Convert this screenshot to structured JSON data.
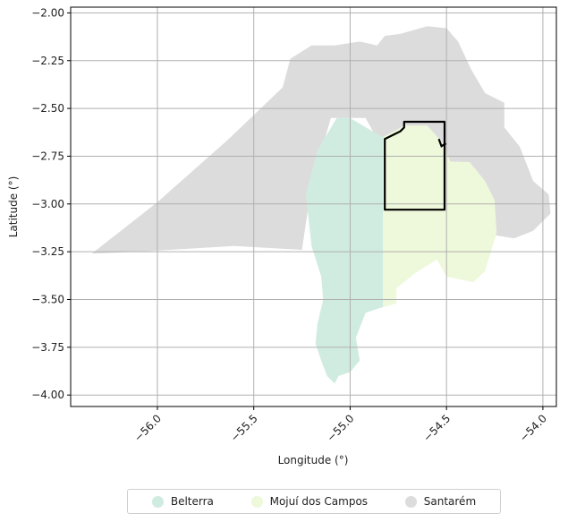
{
  "chart_data": {
    "type": "map",
    "xlabel": "Longitude (°)",
    "ylabel": "Latitude (°)",
    "xlim": [
      -56.45,
      -53.93
    ],
    "ylim": [
      -4.06,
      -1.97
    ],
    "x_ticks": [
      {
        "value": -56.0,
        "label": "−56.0"
      },
      {
        "value": -55.5,
        "label": "−55.5"
      },
      {
        "value": -55.0,
        "label": "−55.0"
      },
      {
        "value": -54.5,
        "label": "−54.5"
      },
      {
        "value": -54.0,
        "label": "−54.0"
      }
    ],
    "y_ticks": [
      {
        "value": -2.0,
        "label": "−2.00"
      },
      {
        "value": -2.25,
        "label": "−2.25"
      },
      {
        "value": -2.5,
        "label": "−2.50"
      },
      {
        "value": -2.75,
        "label": "−2.75"
      },
      {
        "value": -3.0,
        "label": "−3.00"
      },
      {
        "value": -3.25,
        "label": "−3.25"
      },
      {
        "value": -3.5,
        "label": "−3.50"
      },
      {
        "value": -3.75,
        "label": "−3.75"
      },
      {
        "value": -4.0,
        "label": "−4.00"
      }
    ],
    "grid": true,
    "legend_position": "bottom-center",
    "regions": [
      {
        "name": "Santarém",
        "color": "#dcdcdc",
        "polygon": [
          [
            -56.34,
            -3.26
          ],
          [
            -56.0,
            -2.99
          ],
          [
            -55.63,
            -2.66
          ],
          [
            -55.35,
            -2.39
          ],
          [
            -55.31,
            -2.24
          ],
          [
            -55.2,
            -2.17
          ],
          [
            -55.08,
            -2.17
          ],
          [
            -54.95,
            -2.15
          ],
          [
            -54.86,
            -2.17
          ],
          [
            -54.82,
            -2.12
          ],
          [
            -54.74,
            -2.11
          ],
          [
            -54.6,
            -2.07
          ],
          [
            -54.5,
            -2.08
          ],
          [
            -54.44,
            -2.15
          ],
          [
            -54.37,
            -2.3
          ],
          [
            -54.3,
            -2.42
          ],
          [
            -54.2,
            -2.47
          ],
          [
            -54.2,
            -2.6
          ],
          [
            -54.12,
            -2.7
          ],
          [
            -54.05,
            -2.88
          ],
          [
            -53.97,
            -2.95
          ],
          [
            -53.96,
            -3.05
          ],
          [
            -54.05,
            -3.14
          ],
          [
            -54.15,
            -3.18
          ],
          [
            -54.27,
            -3.16
          ],
          [
            -54.36,
            -2.85
          ],
          [
            -54.42,
            -2.78
          ],
          [
            -54.8,
            -2.77
          ],
          [
            -54.92,
            -2.55
          ],
          [
            -55.1,
            -2.55
          ],
          [
            -55.2,
            -2.9
          ],
          [
            -55.25,
            -3.24
          ],
          [
            -55.6,
            -3.22
          ],
          [
            -56.1,
            -3.25
          ]
        ]
      },
      {
        "name": "Mojuí dos Campos",
        "color": "#eef8da",
        "polygon": [
          [
            -54.83,
            -2.65
          ],
          [
            -54.72,
            -2.59
          ],
          [
            -54.6,
            -2.59
          ],
          [
            -54.52,
            -2.68
          ],
          [
            -54.48,
            -2.78
          ],
          [
            -54.38,
            -2.78
          ],
          [
            -54.3,
            -2.88
          ],
          [
            -54.25,
            -2.98
          ],
          [
            -54.24,
            -3.15
          ],
          [
            -54.3,
            -3.35
          ],
          [
            -54.36,
            -3.41
          ],
          [
            -54.5,
            -3.38
          ],
          [
            -54.55,
            -3.29
          ],
          [
            -54.66,
            -3.36
          ],
          [
            -54.76,
            -3.44
          ],
          [
            -54.76,
            -3.52
          ],
          [
            -54.83,
            -3.54
          ]
        ]
      },
      {
        "name": "Belterra",
        "color": "#d0ece0",
        "polygon": [
          [
            -55.07,
            -2.55
          ],
          [
            -55.0,
            -2.55
          ],
          [
            -54.9,
            -2.61
          ],
          [
            -54.83,
            -2.65
          ],
          [
            -54.83,
            -3.54
          ],
          [
            -54.92,
            -3.57
          ],
          [
            -54.97,
            -3.7
          ],
          [
            -54.95,
            -3.82
          ],
          [
            -55.0,
            -3.88
          ],
          [
            -55.06,
            -3.9
          ],
          [
            -55.08,
            -3.94
          ],
          [
            -55.12,
            -3.9
          ],
          [
            -55.15,
            -3.82
          ],
          [
            -55.18,
            -3.73
          ],
          [
            -55.17,
            -3.63
          ],
          [
            -55.14,
            -3.5
          ],
          [
            -55.15,
            -3.38
          ],
          [
            -55.2,
            -3.22
          ],
          [
            -55.23,
            -2.95
          ],
          [
            -55.17,
            -2.72
          ]
        ]
      }
    ],
    "outline": {
      "color": "#000000",
      "polygon": [
        [
          -54.82,
          -2.66
        ],
        [
          -54.78,
          -2.64
        ],
        [
          -54.74,
          -2.62
        ],
        [
          -54.72,
          -2.6
        ],
        [
          -54.72,
          -2.57
        ],
        [
          -54.51,
          -2.57
        ],
        [
          -54.51,
          -3.03
        ],
        [
          -54.82,
          -3.03
        ]
      ]
    },
    "legend": [
      {
        "label": "Belterra",
        "color": "#d0ece0"
      },
      {
        "label": "Mojuí dos Campos",
        "color": "#eef8da"
      },
      {
        "label": "Santarém",
        "color": "#dcdcdc"
      }
    ]
  }
}
